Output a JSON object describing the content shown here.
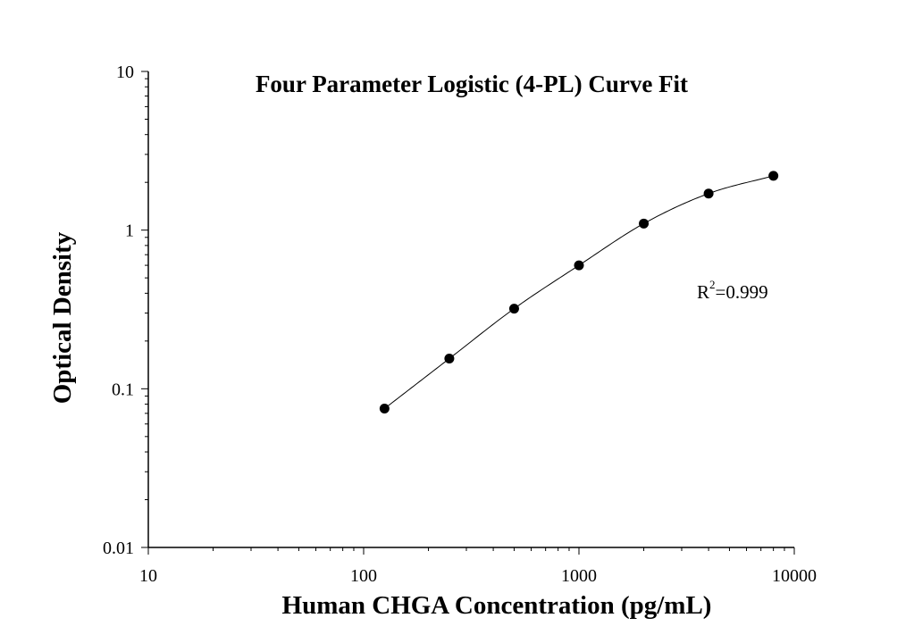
{
  "chart_data": {
    "type": "scatter",
    "title": "Four Parameter Logistic (4-PL) Curve Fit",
    "xlabel": "Human CHGA Concentration (pg/mL)",
    "ylabel": "Optical Density",
    "xscale": "log",
    "yscale": "log",
    "xlim": [
      10,
      10000
    ],
    "ylim": [
      0.01,
      10
    ],
    "xticks": [
      "10",
      "100",
      "1000",
      "10000"
    ],
    "yticks": [
      "0.01",
      "0.1",
      "1",
      "10"
    ],
    "grid": false,
    "legend": "none",
    "series": [
      {
        "points": [
          {
            "x": 125,
            "y": 0.075
          },
          {
            "x": 250,
            "y": 0.155
          },
          {
            "x": 500,
            "y": 0.32
          },
          {
            "x": 1000,
            "y": 0.6
          },
          {
            "x": 2000,
            "y": 1.1
          },
          {
            "x": 4000,
            "y": 1.7
          },
          {
            "x": 8000,
            "y": 2.2
          }
        ],
        "fit": "4-PL"
      }
    ],
    "annotation": {
      "prefix": "R",
      "superscript": "2",
      "suffix": "=0.999"
    },
    "colors": {
      "marker": "#000000",
      "line": "#000000"
    }
  }
}
